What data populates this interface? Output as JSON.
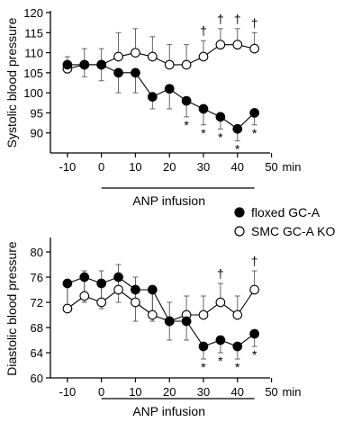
{
  "legend": {
    "series_a_label": "floxed GC-A",
    "series_b_label": "SMC GC-A KO"
  },
  "chart_data": [
    {
      "type": "line",
      "ylabel": "Systolic blood pressure",
      "xlabel": "",
      "x_unit": "min",
      "ylim": [
        85,
        120
      ],
      "xlim": [
        -15,
        48
      ],
      "yticks": [
        90,
        95,
        100,
        105,
        110,
        115,
        120
      ],
      "xticks": [
        -10,
        0,
        10,
        20,
        30,
        40,
        50
      ],
      "x": [
        -10,
        -5,
        0,
        5,
        10,
        15,
        20,
        25,
        30,
        35,
        40,
        45
      ],
      "infusion_label": "ANP infusion",
      "infusion_range": [
        0,
        45
      ],
      "series": [
        {
          "name": "floxed GC-A",
          "marker": "filled",
          "values": [
            107,
            107,
            107,
            105,
            105,
            99,
            101,
            98,
            96,
            94,
            91,
            95
          ],
          "err": [
            2,
            3,
            4,
            5,
            5,
            3,
            5,
            4,
            4,
            3,
            3,
            3
          ],
          "sig": [
            "",
            "",
            "",
            "",
            "",
            "",
            "",
            "*",
            "*",
            "*",
            "*",
            "*"
          ]
        },
        {
          "name": "SMC GC-A KO",
          "marker": "open",
          "values": [
            106,
            107,
            107,
            109,
            110,
            109,
            107,
            107,
            109,
            112,
            112,
            111
          ],
          "err": [
            3,
            4,
            4,
            6,
            6,
            5,
            5,
            5,
            4,
            4,
            4,
            4
          ],
          "sig": [
            "",
            "",
            "",
            "",
            "",
            "",
            "",
            "",
            "†",
            "†",
            "†",
            "†"
          ]
        }
      ]
    },
    {
      "type": "line",
      "ylabel": "Diastolic blood pressure",
      "xlabel": "",
      "x_unit": "min",
      "ylim": [
        60,
        82
      ],
      "xlim": [
        -15,
        48
      ],
      "yticks": [
        60,
        64,
        68,
        72,
        76,
        80
      ],
      "xticks": [
        -10,
        0,
        10,
        20,
        30,
        40,
        50
      ],
      "x": [
        -10,
        -5,
        0,
        5,
        10,
        15,
        20,
        25,
        30,
        35,
        40,
        45
      ],
      "infusion_label": "ANP infusion",
      "infusion_range": [
        0,
        45
      ],
      "series": [
        {
          "name": "floxed GC-A",
          "marker": "filled",
          "values": [
            75,
            76,
            75,
            76,
            74,
            74,
            69,
            69,
            65,
            66,
            65,
            67
          ],
          "err": [
            4,
            4,
            4,
            4,
            5,
            5,
            3,
            3,
            2,
            2,
            2,
            2
          ],
          "sig": [
            "",
            "",
            "",
            "",
            "",
            "",
            "",
            "",
            "*",
            "*",
            "*",
            "*"
          ]
        },
        {
          "name": "SMC GC-A KO",
          "marker": "open",
          "values": [
            71,
            73,
            72,
            74,
            72,
            70,
            69,
            70,
            70,
            72,
            70,
            74
          ],
          "err": [
            4,
            4,
            5,
            4,
            4,
            4,
            3,
            3,
            3,
            3,
            3,
            3
          ],
          "sig": [
            "",
            "",
            "",
            "",
            "",
            "",
            "",
            "",
            "",
            "†",
            "",
            "†"
          ]
        }
      ]
    }
  ]
}
